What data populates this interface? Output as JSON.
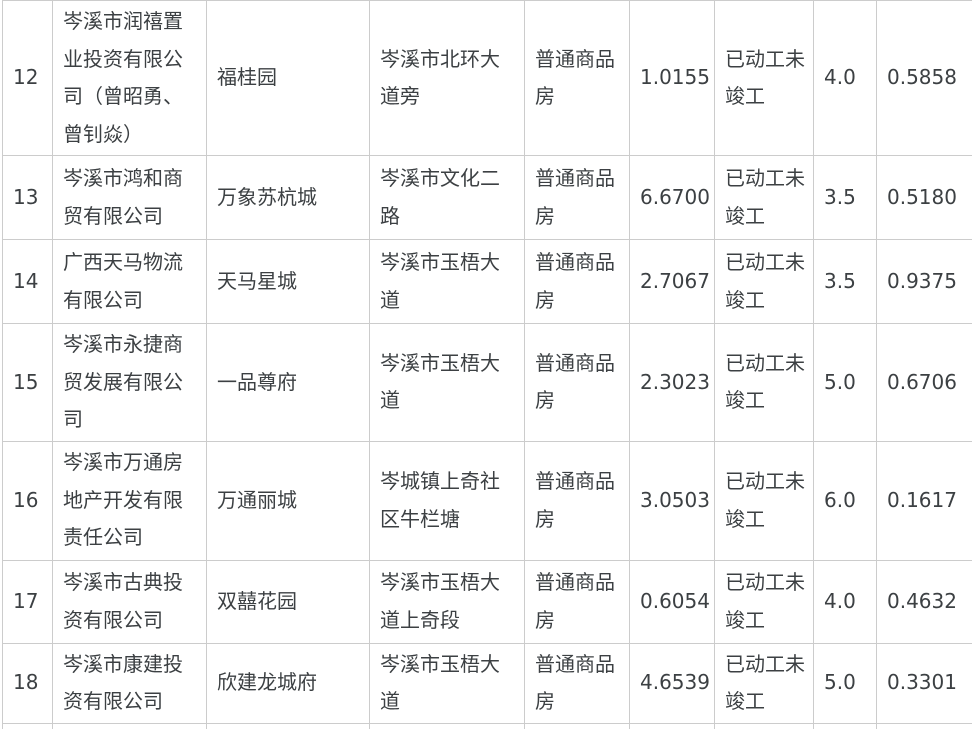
{
  "colors": {
    "text": "#3c4043",
    "border": "#cccccc",
    "background": "#ffffff"
  },
  "table": {
    "rows": [
      {
        "cells": [
          "12",
          "岑溪市润禧置业投资有限公司（曾昭勇、曾钊焱）",
          "福桂园",
          "岑溪市北环大道旁",
          "普通商品房",
          "1.0155",
          "已动工未竣工",
          "4.0",
          "0.5858"
        ],
        "project_name_on_second_line": false
      },
      {
        "cells": [
          "13",
          "岑溪市鸿和商贸有限公司",
          "万象苏杭城",
          "岑溪市文化二路",
          "普通商品房",
          "6.6700",
          "已动工未竣工",
          "3.5",
          "0.5180"
        ],
        "project_name_on_second_line": false
      },
      {
        "cells": [
          "14",
          "广西天马物流有限公司",
          "天马星城",
          "岑溪市玉梧大道",
          "普通商品房",
          "2.7067",
          "已动工未竣工",
          "3.5",
          "0.9375"
        ],
        "project_name_on_second_line": false
      },
      {
        "cells": [
          "15",
          "岑溪市永捷商贸发展有限公司",
          "一品尊府",
          "岑溪市玉梧大道",
          "普通商品房",
          "2.3023",
          "已动工未竣工",
          "5.0",
          "0.6706"
        ],
        "project_name_on_second_line": false
      },
      {
        "cells": [
          "16",
          "岑溪市万通房地产开发有限责任公司",
          "万通丽城",
          "岑城镇上奇社区牛栏塘",
          "普通商品房",
          "3.0503",
          "已动工未竣工",
          "6.0",
          "0.1617"
        ],
        "project_name_on_second_line": false
      },
      {
        "cells": [
          "17",
          "岑溪市古典投资有限公司",
          "双囍花园",
          "岑溪市玉梧大道上奇段",
          "普通商品房",
          "0.6054",
          "已动工未竣工",
          "4.0",
          "0.4632"
        ],
        "project_name_on_second_line": true
      },
      {
        "cells": [
          "18",
          "岑溪市康建投资有限公司",
          "欣建龙城府",
          "岑溪市玉梧大道",
          "普通商品房",
          "4.6539",
          "已动工未竣工",
          "5.0",
          "0.3301"
        ],
        "project_name_on_second_line": true
      }
    ]
  }
}
